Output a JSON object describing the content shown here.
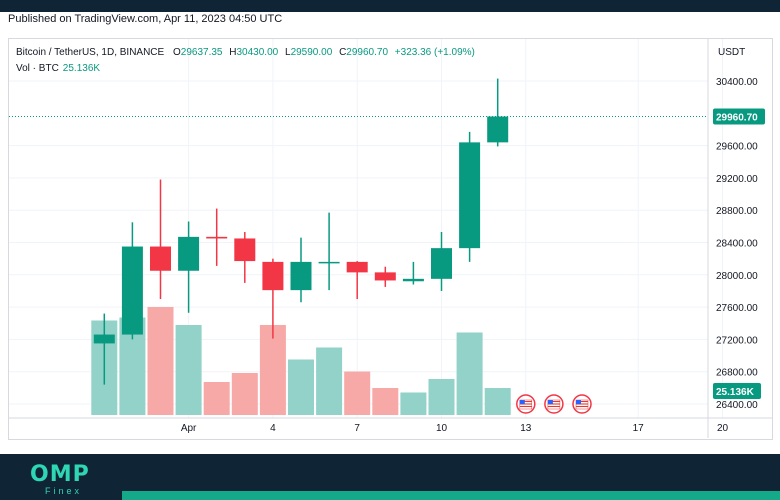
{
  "header": {
    "published": "Published on TradingView.com, Apr 11, 2023 04:50 UTC"
  },
  "legend": {
    "symbol": "Bitcoin / TetherUS, 1D, BINANCE",
    "open_label": "O",
    "open": "29637.35",
    "high_label": "H",
    "high": "30430.00",
    "low_label": "L",
    "low": "29590.00",
    "close_label": "C",
    "close": "29960.70",
    "change": "+323.36 (+1.09%)",
    "vol_label": "Vol · BTC",
    "vol_value": "25.136K"
  },
  "axis": {
    "currency": "USDT"
  },
  "footer": {
    "logo": "OMP",
    "logo_sub": "Finex"
  },
  "colors": {
    "up": "#089981",
    "down": "#f23645",
    "up_vol": "#92d2c9",
    "down_vol": "#f7a9a7",
    "grid": "#f0f3fa"
  },
  "chart_data": {
    "type": "candlestick",
    "y_ticks": [
      "30400.00",
      "29600.00",
      "29200.00",
      "28800.00",
      "28400.00",
      "28000.00",
      "27600.00",
      "27200.00",
      "26800.00",
      "26400.00"
    ],
    "y_tick_values": [
      30400,
      29600,
      29200,
      28800,
      28400,
      28000,
      27600,
      27200,
      26800,
      26400
    ],
    "ylim": [
      26300,
      30700
    ],
    "x_ticks": [
      {
        "label": "Apr",
        "day": 1
      },
      {
        "label": "4",
        "day": 4
      },
      {
        "label": "7",
        "day": 7
      },
      {
        "label": "10",
        "day": 10
      },
      {
        "label": "13",
        "day": 13
      },
      {
        "label": "17",
        "day": 17
      },
      {
        "label": "20",
        "day": 20
      }
    ],
    "current_price": 29960.7,
    "current_price_label": "29960.70",
    "volume_label": "25.136K",
    "candles": [
      {
        "day": -2,
        "open": 27150,
        "high": 27520,
        "low": 26640,
        "close": 27260,
        "volume": 0.63
      },
      {
        "day": -1,
        "open": 27260,
        "high": 28650,
        "low": 27200,
        "close": 28350,
        "volume": 0.65
      },
      {
        "day": 0,
        "open": 28350,
        "high": 29180,
        "low": 27700,
        "close": 28050,
        "volume": 0.72
      },
      {
        "day": 1,
        "open": 28050,
        "high": 28660,
        "low": 27530,
        "close": 28470,
        "volume": 0.6
      },
      {
        "day": 2,
        "open": 28470,
        "high": 28820,
        "low": 28110,
        "close": 28450,
        "volume": 0.22
      },
      {
        "day": 3,
        "open": 28450,
        "high": 28530,
        "low": 27900,
        "close": 28170,
        "volume": 0.28
      },
      {
        "day": 4,
        "open": 28160,
        "high": 28200,
        "low": 27210,
        "close": 27810,
        "volume": 0.6
      },
      {
        "day": 5,
        "open": 27810,
        "high": 28460,
        "low": 27660,
        "close": 28160,
        "volume": 0.37
      },
      {
        "day": 6,
        "open": 28160,
        "high": 28770,
        "low": 27810,
        "close": 28160,
        "volume": 0.45
      },
      {
        "day": 7,
        "open": 28160,
        "high": 28170,
        "low": 27700,
        "close": 28030,
        "volume": 0.29
      },
      {
        "day": 8,
        "open": 28030,
        "high": 28100,
        "low": 27850,
        "close": 27930,
        "volume": 0.18
      },
      {
        "day": 9,
        "open": 27920,
        "high": 28160,
        "low": 27880,
        "close": 27950,
        "volume": 0.15
      },
      {
        "day": 10,
        "open": 27950,
        "high": 28530,
        "low": 27800,
        "close": 28330,
        "volume": 0.24
      },
      {
        "day": 11,
        "open": 28330,
        "high": 29770,
        "low": 28160,
        "close": 29640,
        "volume": 0.55
      },
      {
        "day": 12,
        "open": 29640,
        "high": 30430,
        "low": 29590,
        "close": 29960,
        "volume": 0.18
      }
    ],
    "events": [
      {
        "day": 13,
        "icon": "us-flag-icon"
      },
      {
        "day": 14,
        "icon": "us-flag-icon"
      },
      {
        "day": 15,
        "icon": "us-flag-icon"
      }
    ]
  }
}
